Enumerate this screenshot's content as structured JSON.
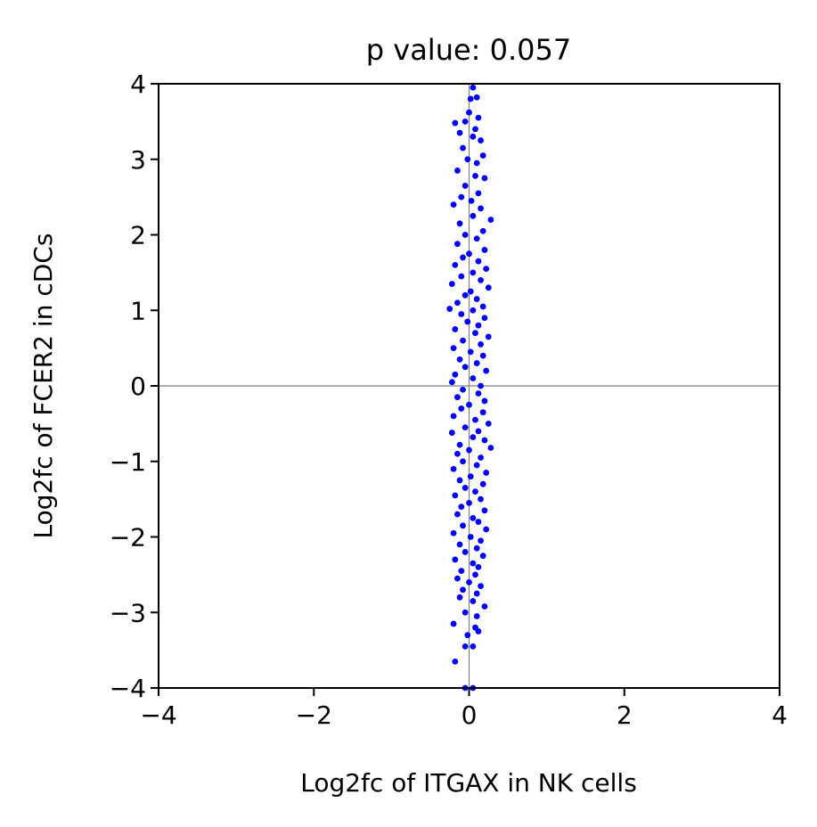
{
  "chart_data": {
    "type": "scatter",
    "title": "p value: 0.057",
    "xlabel": "Log2fc of ITGAX in NK cells",
    "ylabel": "Log2fc of FCER2 in cDCs",
    "xlim": [
      -4,
      4
    ],
    "ylim": [
      -4,
      4
    ],
    "xticks": [
      -4,
      -2,
      0,
      2,
      4
    ],
    "yticks": [
      -4,
      -3,
      -2,
      -1,
      0,
      1,
      2,
      3,
      4
    ],
    "xtick_labels": [
      "−4",
      "−2",
      "0",
      "2",
      "4"
    ],
    "ytick_labels": [
      "−4",
      "−3",
      "−2",
      "−1",
      "0",
      "1",
      "2",
      "3",
      "4"
    ],
    "reference_lines": {
      "x": 0,
      "y": 0,
      "color": "#808080"
    },
    "grid": false,
    "marker_color": "#0000ff",
    "series": [
      {
        "points": [
          [
            0.05,
            3.95
          ],
          [
            0.1,
            3.82
          ],
          [
            0.02,
            3.8
          ],
          [
            -0.05,
            3.5
          ],
          [
            0.12,
            3.55
          ],
          [
            -0.18,
            3.48
          ],
          [
            0.08,
            3.4
          ],
          [
            -0.12,
            3.35
          ],
          [
            0.0,
            3.62
          ],
          [
            0.15,
            3.25
          ],
          [
            -0.08,
            3.15
          ],
          [
            0.05,
            3.3
          ],
          [
            0.18,
            3.05
          ],
          [
            -0.02,
            3.0
          ],
          [
            0.1,
            2.95
          ],
          [
            -0.15,
            2.85
          ],
          [
            0.08,
            2.78
          ],
          [
            0.2,
            2.75
          ],
          [
            -0.05,
            2.65
          ],
          [
            0.12,
            2.55
          ],
          [
            -0.1,
            2.5
          ],
          [
            0.03,
            2.45
          ],
          [
            -0.2,
            2.4
          ],
          [
            0.15,
            2.35
          ],
          [
            0.28,
            2.2
          ],
          [
            0.05,
            2.25
          ],
          [
            -0.12,
            2.15
          ],
          [
            0.18,
            2.05
          ],
          [
            -0.05,
            2.0
          ],
          [
            0.1,
            1.95
          ],
          [
            -0.15,
            1.88
          ],
          [
            0.2,
            1.8
          ],
          [
            0.0,
            1.75
          ],
          [
            -0.08,
            1.7
          ],
          [
            0.12,
            1.65
          ],
          [
            -0.18,
            1.6
          ],
          [
            0.22,
            1.55
          ],
          [
            0.05,
            1.5
          ],
          [
            -0.1,
            1.45
          ],
          [
            0.15,
            1.4
          ],
          [
            -0.22,
            1.35
          ],
          [
            0.25,
            1.3
          ],
          [
            0.02,
            1.25
          ],
          [
            -0.05,
            1.2
          ],
          [
            0.1,
            1.15
          ],
          [
            -0.15,
            1.1
          ],
          [
            0.18,
            1.05
          ],
          [
            -0.25,
            1.02
          ],
          [
            0.05,
            1.0
          ],
          [
            -0.1,
            0.95
          ],
          [
            0.2,
            0.9
          ],
          [
            -0.02,
            0.85
          ],
          [
            0.12,
            0.8
          ],
          [
            -0.18,
            0.75
          ],
          [
            0.08,
            0.7
          ],
          [
            0.25,
            0.65
          ],
          [
            -0.08,
            0.6
          ],
          [
            0.15,
            0.55
          ],
          [
            -0.2,
            0.5
          ],
          [
            0.02,
            0.45
          ],
          [
            0.18,
            0.4
          ],
          [
            -0.12,
            0.35
          ],
          [
            0.1,
            0.3
          ],
          [
            -0.05,
            0.25
          ],
          [
            0.22,
            0.2
          ],
          [
            -0.18,
            0.15
          ],
          [
            0.05,
            0.1
          ],
          [
            -0.22,
            0.05
          ],
          [
            0.15,
            0.0
          ],
          [
            -0.08,
            -0.05
          ],
          [
            0.12,
            -0.1
          ],
          [
            -0.15,
            -0.15
          ],
          [
            0.2,
            -0.2
          ],
          [
            0.0,
            -0.25
          ],
          [
            -0.1,
            -0.3
          ],
          [
            0.18,
            -0.35
          ],
          [
            -0.2,
            -0.4
          ],
          [
            0.08,
            -0.45
          ],
          [
            0.25,
            -0.5
          ],
          [
            -0.05,
            -0.55
          ],
          [
            0.12,
            -0.6
          ],
          [
            -0.22,
            -0.62
          ],
          [
            0.05,
            -0.68
          ],
          [
            0.2,
            -0.72
          ],
          [
            -0.12,
            -0.78
          ],
          [
            0.28,
            -0.82
          ],
          [
            0.0,
            -0.85
          ],
          [
            -0.15,
            -0.9
          ],
          [
            0.15,
            -0.95
          ],
          [
            -0.08,
            -1.0
          ],
          [
            0.1,
            -1.05
          ],
          [
            -0.2,
            -1.1
          ],
          [
            0.22,
            -1.15
          ],
          [
            0.02,
            -1.2
          ],
          [
            -0.12,
            -1.25
          ],
          [
            0.18,
            -1.3
          ],
          [
            -0.05,
            -1.35
          ],
          [
            0.08,
            -1.4
          ],
          [
            -0.18,
            -1.45
          ],
          [
            0.15,
            -1.5
          ],
          [
            0.0,
            -1.55
          ],
          [
            -0.1,
            -1.6
          ],
          [
            0.2,
            -1.65
          ],
          [
            -0.15,
            -1.7
          ],
          [
            0.05,
            -1.75
          ],
          [
            0.12,
            -1.8
          ],
          [
            -0.08,
            -1.85
          ],
          [
            0.22,
            -1.9
          ],
          [
            -0.2,
            -1.95
          ],
          [
            0.02,
            -2.0
          ],
          [
            0.15,
            -2.05
          ],
          [
            -0.12,
            -2.1
          ],
          [
            0.1,
            -2.15
          ],
          [
            -0.05,
            -2.2
          ],
          [
            0.18,
            -2.25
          ],
          [
            -0.18,
            -2.3
          ],
          [
            0.05,
            -2.35
          ],
          [
            0.12,
            -2.4
          ],
          [
            -0.1,
            -2.45
          ],
          [
            0.08,
            -2.5
          ],
          [
            -0.15,
            -2.55
          ],
          [
            0.0,
            -2.6
          ],
          [
            0.15,
            -2.65
          ],
          [
            -0.08,
            -2.7
          ],
          [
            0.1,
            -2.75
          ],
          [
            -0.12,
            -2.8
          ],
          [
            0.05,
            -2.85
          ],
          [
            0.2,
            -2.92
          ],
          [
            -0.05,
            -3.0
          ],
          [
            0.1,
            -3.05
          ],
          [
            -0.2,
            -3.15
          ],
          [
            0.08,
            -3.2
          ],
          [
            -0.02,
            -3.3
          ],
          [
            0.12,
            -3.25
          ],
          [
            -0.05,
            -3.45
          ],
          [
            0.05,
            -3.45
          ],
          [
            -0.18,
            -3.65
          ],
          [
            -0.05,
            -4.0
          ],
          [
            0.05,
            -4.0
          ]
        ]
      }
    ]
  }
}
